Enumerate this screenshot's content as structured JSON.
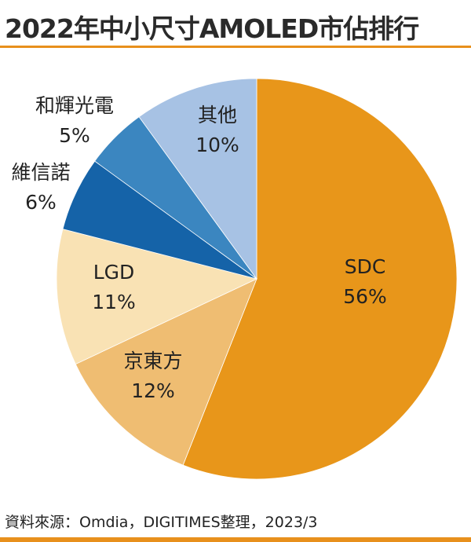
{
  "chart_data": {
    "type": "pie",
    "title": "2022年中小尺寸AMOLED市佔排行",
    "slices": [
      {
        "label": "SDC",
        "value": 56,
        "value_label": "56%",
        "color": "#e8961a",
        "label_color": "#222222"
      },
      {
        "label": "京東方",
        "value": 12,
        "value_label": "12%",
        "color": "#efbd72",
        "label_color": "#222222"
      },
      {
        "label": "LGD",
        "value": 11,
        "value_label": "11%",
        "color": "#f9e2b4",
        "label_color": "#222222"
      },
      {
        "label": "維信諾",
        "value": 6,
        "value_label": "6%",
        "color": "#1563a8",
        "label_color": "#222222"
      },
      {
        "label": "和輝光電",
        "value": 5,
        "value_label": "5%",
        "color": "#3b86c0",
        "label_color": "#222222"
      },
      {
        "label": "其他",
        "value": 10,
        "value_label": "10%",
        "color": "#a7c2e4",
        "label_color": "#222222"
      }
    ]
  },
  "source": "資料來源：Omdia，DIGITIMES整理，2023/3",
  "colors": {
    "accent": "#e8901c"
  }
}
